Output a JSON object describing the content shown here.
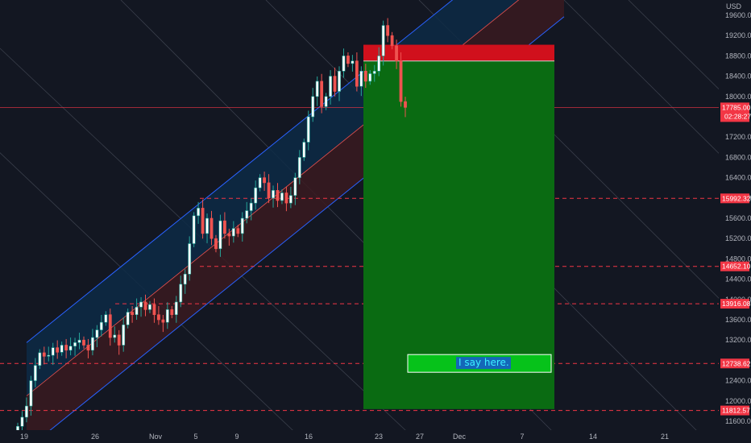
{
  "chart_data": {
    "type": "candlestick",
    "currency": "USD",
    "ylim": [
      11400,
      19800
    ],
    "y_ticks": [
      11600,
      12000,
      12400,
      13200,
      13600,
      14000,
      14400,
      14800,
      15200,
      15600,
      16000,
      16400,
      16800,
      17200,
      18000,
      18400,
      18800,
      19200,
      19600
    ],
    "x_range_days": [
      0,
      34.5
    ],
    "x_ticks": [
      {
        "label": "19",
        "day": 0
      },
      {
        "label": "26",
        "day": 7
      },
      {
        "label": "Nov",
        "day": 13
      },
      {
        "label": "5",
        "day": 17
      },
      {
        "label": "9",
        "day": 21
      },
      {
        "label": "16",
        "day": 28
      },
      {
        "label": "23",
        "day": 35
      },
      {
        "label": "27",
        "day": 39
      },
      {
        "label": "Dec",
        "day": 43
      },
      {
        "label": "7",
        "day": 49
      },
      {
        "label": "14",
        "day": 56
      },
      {
        "label": "21",
        "day": 63
      }
    ],
    "horizontal_levels": [
      {
        "label": "15992.32",
        "value": 15992.32
      },
      {
        "label": "14652.10",
        "value": 14652.1
      },
      {
        "label": "13916.08",
        "value": 13916.08
      },
      {
        "label": "12738.62",
        "value": 12738.62
      },
      {
        "label": "11812.57",
        "value": 11812.57
      }
    ],
    "current_price": {
      "label": "17785.00",
      "value": 17785.0,
      "countdown": "02:28:27"
    },
    "position": {
      "entry": 18700,
      "stop": 19020,
      "target": 11840
    },
    "annotation": {
      "text": "I say here.",
      "value": 12740
    },
    "colors": {
      "background": "#131722",
      "up": "#26a69a",
      "up_body": "#ffffff",
      "down": "#ef5350",
      "channel_upper_fill": "#0d2a45",
      "channel_lower_fill": "#3a1a20",
      "channel_line": "#2962ff",
      "profit_zone": "#0a6b12",
      "loss_zone": "#d0101c",
      "level_line": "#f23645"
    },
    "closes": [
      11500,
      11680,
      11900,
      12400,
      12700,
      12950,
      12880,
      12900,
      13050,
      12960,
      13100,
      13000,
      13080,
      13150,
      13200,
      13100,
      13000,
      13250,
      13400,
      13550,
      13700,
      13250,
      13300,
      13100,
      13500,
      13750,
      13700,
      13850,
      13950,
      13800,
      13900,
      13700,
      13600,
      13550,
      13800,
      13700,
      13950,
      14300,
      14500,
      15100,
      15650,
      15800,
      15300,
      15600,
      15200,
      15000,
      15550,
      15300,
      15250,
      15400,
      15300,
      15600,
      15750,
      15900,
      16200,
      16400,
      16300,
      16000,
      16150,
      15950,
      16100,
      15900,
      16050,
      16400,
      16800,
      17100,
      17600,
      18000,
      18300,
      17800,
      18000,
      18400,
      18100,
      18500,
      18800,
      18650,
      18700,
      18200,
      18500,
      18300,
      18450,
      18500,
      18800,
      19400,
      19200,
      19000,
      18700,
      17900,
      17785
    ]
  }
}
